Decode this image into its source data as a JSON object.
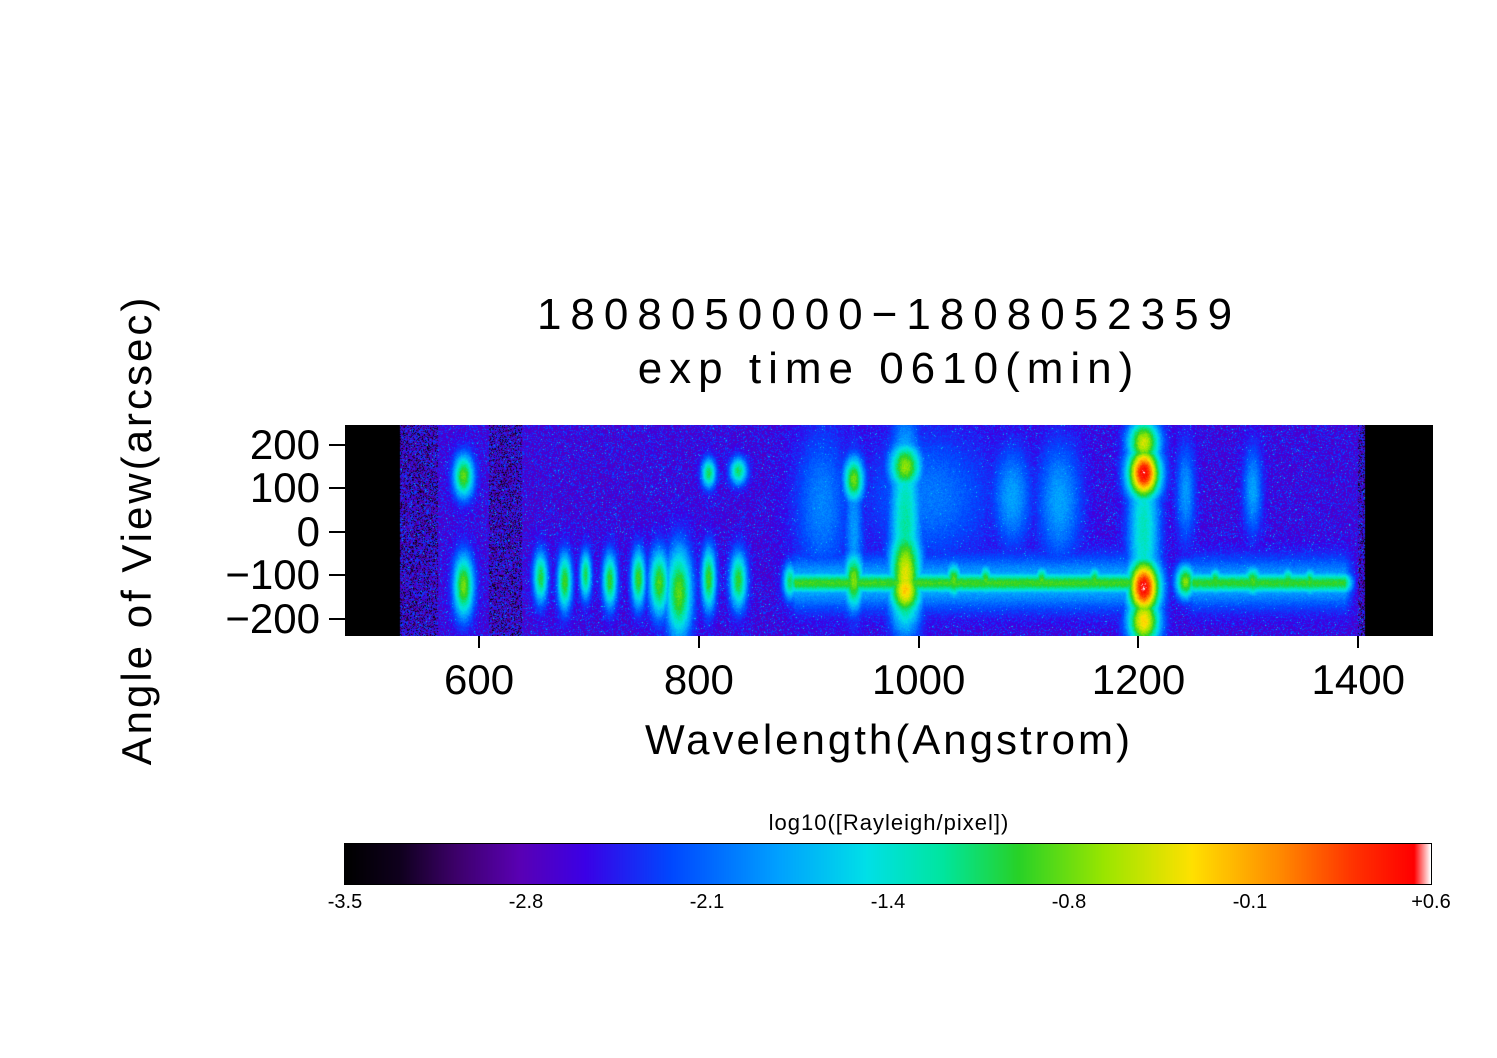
{
  "chart_data": {
    "type": "heatmap",
    "title": "1808050000−1808052359",
    "subtitle": "exp time 0610(min)",
    "xlabel": "Wavelength(Angstrom)",
    "ylabel": "Angle of View(arcsec)",
    "xlim": [
      478,
      1468
    ],
    "ylim": [
      -240,
      246
    ],
    "data_xrange": [
      528,
      1406
    ],
    "grid": false,
    "x_ticks": [
      {
        "v": 600,
        "label": "600"
      },
      {
        "v": 800,
        "label": "800"
      },
      {
        "v": 1000,
        "label": "1000"
      },
      {
        "v": 1200,
        "label": "1200"
      },
      {
        "v": 1400,
        "label": "1400"
      }
    ],
    "y_ticks": [
      {
        "v": 200,
        "label": "200"
      },
      {
        "v": 100,
        "label": "100"
      },
      {
        "v": 0,
        "label": "0"
      },
      {
        "v": -100,
        "label": "−100"
      },
      {
        "v": -200,
        "label": "−200"
      }
    ],
    "background_level": -2.75,
    "noise": {
      "seed": 42,
      "spread": 1.1
    },
    "colorbar": {
      "label": "log10([Rayleigh/pixel])",
      "min": -3.5,
      "max": 0.6,
      "tick_labels": [
        "-3.5",
        "-2.8",
        "-2.1",
        "-1.4",
        "-0.8",
        "-0.1",
        "+0.6"
      ]
    },
    "colormap": [
      [
        0.0,
        "#000000"
      ],
      [
        0.05,
        "#10001e"
      ],
      [
        0.1,
        "#3c0068"
      ],
      [
        0.16,
        "#5a00b4"
      ],
      [
        0.22,
        "#3c00e6"
      ],
      [
        0.3,
        "#0048ff"
      ],
      [
        0.4,
        "#00a2ff"
      ],
      [
        0.48,
        "#00e0e8"
      ],
      [
        0.55,
        "#00e6a0"
      ],
      [
        0.62,
        "#28d228"
      ],
      [
        0.7,
        "#9ce600"
      ],
      [
        0.78,
        "#ffe100"
      ],
      [
        0.86,
        "#ff8c00"
      ],
      [
        0.93,
        "#ff3200"
      ],
      [
        0.985,
        "#ff0000"
      ],
      [
        1.0,
        "#ffffff"
      ]
    ],
    "features": [
      {
        "l": 586,
        "sx": 7,
        "segs": [
          {
            "yc": 128,
            "sy": 38,
            "a": -0.8
          },
          {
            "yc": -125,
            "sy": 55,
            "a": -0.75
          }
        ]
      },
      {
        "l": 656,
        "sx": 5,
        "segs": [
          {
            "yc": -105,
            "sy": 45,
            "a": -1.0
          }
        ]
      },
      {
        "l": 678,
        "sx": 5,
        "segs": [
          {
            "yc": -115,
            "sy": 50,
            "a": -0.9
          }
        ]
      },
      {
        "l": 697,
        "sx": 4,
        "segs": [
          {
            "yc": -100,
            "sy": 42,
            "a": -1.05
          }
        ]
      },
      {
        "l": 719,
        "sx": 5,
        "segs": [
          {
            "yc": -112,
            "sy": 48,
            "a": -0.95
          }
        ]
      },
      {
        "l": 745,
        "sx": 5,
        "segs": [
          {
            "yc": -108,
            "sy": 50,
            "a": -0.9
          }
        ]
      },
      {
        "l": 764,
        "sx": 7,
        "segs": [
          {
            "yc": -118,
            "sy": 58,
            "a": -0.85
          }
        ]
      },
      {
        "l": 782,
        "sx": 9,
        "segs": [
          {
            "yc": -140,
            "sy": 80,
            "a": -0.8
          }
        ]
      },
      {
        "l": 809,
        "sx": 5,
        "segs": [
          {
            "yc": 135,
            "sy": 26,
            "a": -1.05
          },
          {
            "yc": -108,
            "sy": 55,
            "a": -0.9
          }
        ]
      },
      {
        "l": 836,
        "sx": 6,
        "segs": [
          {
            "yc": 140,
            "sy": 24,
            "a": -1.1
          },
          {
            "yc": -112,
            "sy": 50,
            "a": -0.95
          }
        ]
      },
      {
        "l": 883,
        "sx": 5,
        "segs": [
          {
            "yc": -115,
            "sy": 32,
            "a": -1.1
          }
        ]
      },
      {
        "l": 912,
        "sx": 20,
        "segs": [
          {
            "yc": 60,
            "sy": 140,
            "a": -2.0
          }
        ]
      },
      {
        "l": 941,
        "sx": 7,
        "segs": [
          {
            "yc": 120,
            "sy": 40,
            "a": -0.75
          },
          {
            "yc": -112,
            "sy": 50,
            "a": -0.7
          },
          {
            "yc": 0,
            "sy": 150,
            "a": -1.9
          }
        ]
      },
      {
        "l": 988,
        "sx": 11,
        "segs": [
          {
            "yc": 10,
            "sy": 190,
            "a": -1.25
          },
          {
            "yc": 150,
            "sy": 42,
            "a": -0.65
          },
          {
            "yc": -100,
            "sy": 90,
            "a": -0.4
          },
          {
            "yc": -135,
            "sy": 45,
            "a": -0.22
          }
        ]
      },
      {
        "l": 1010,
        "sx": 45,
        "segs": [
          {
            "yc": 80,
            "sy": 120,
            "a": -2.05
          }
        ]
      },
      {
        "l": 1032,
        "sx": 6,
        "segs": [
          {
            "yc": -112,
            "sy": 30,
            "a": -0.8
          }
        ]
      },
      {
        "l": 1061,
        "sx": 5,
        "segs": [
          {
            "yc": -112,
            "sy": 26,
            "a": -0.85
          }
        ]
      },
      {
        "l": 1085,
        "sx": 14,
        "segs": [
          {
            "yc": 80,
            "sy": 90,
            "a": -1.85
          }
        ]
      },
      {
        "l": 1112,
        "sx": 5,
        "segs": [
          {
            "yc": -112,
            "sy": 24,
            "a": -0.85
          }
        ]
      },
      {
        "l": 1128,
        "sx": 16,
        "segs": [
          {
            "yc": 70,
            "sy": 110,
            "a": -1.85
          }
        ]
      },
      {
        "l": 1160,
        "sx": 5,
        "segs": [
          {
            "yc": -112,
            "sy": 24,
            "a": -0.9
          }
        ]
      },
      {
        "l": 1205,
        "sx": 11,
        "segs": [
          {
            "yc": 0,
            "sy": 170,
            "a": -1.35
          },
          {
            "yc": 135,
            "sy": 46,
            "a": 0.55
          },
          {
            "yc": 205,
            "sy": 40,
            "a": -0.45
          },
          {
            "yc": -128,
            "sy": 50,
            "a": 0.57
          },
          {
            "yc": -205,
            "sy": 45,
            "a": -0.25
          }
        ]
      },
      {
        "l": 1243,
        "sx": 7,
        "segs": [
          {
            "yc": -115,
            "sy": 30,
            "a": -0.7
          },
          {
            "yc": 90,
            "sy": 90,
            "a": -1.9
          }
        ]
      },
      {
        "l": 1270,
        "sx": 5,
        "segs": [
          {
            "yc": -114,
            "sy": 24,
            "a": -0.9
          }
        ]
      },
      {
        "l": 1304,
        "sx": 7,
        "segs": [
          {
            "yc": -114,
            "sy": 26,
            "a": -0.85
          },
          {
            "yc": 95,
            "sy": 80,
            "a": -1.85
          }
        ]
      },
      {
        "l": 1336,
        "sx": 5,
        "segs": [
          {
            "yc": -114,
            "sy": 24,
            "a": -0.95
          }
        ]
      },
      {
        "l": 1356,
        "sx": 5,
        "segs": [
          {
            "yc": -116,
            "sy": 24,
            "a": -0.9
          }
        ]
      },
      {
        "l0": 876,
        "l1": 1222,
        "edge": 12,
        "segs": [
          {
            "yc": -118,
            "sy": 19,
            "a": -0.9
          },
          {
            "yc": -118,
            "sy": 48,
            "a": -1.75
          }
        ]
      },
      {
        "l0": 1238,
        "l1": 1400,
        "edge": 12,
        "segs": [
          {
            "yc": -118,
            "sy": 19,
            "a": -0.95
          },
          {
            "yc": -118,
            "sy": 46,
            "a": -1.8
          }
        ]
      }
    ]
  }
}
